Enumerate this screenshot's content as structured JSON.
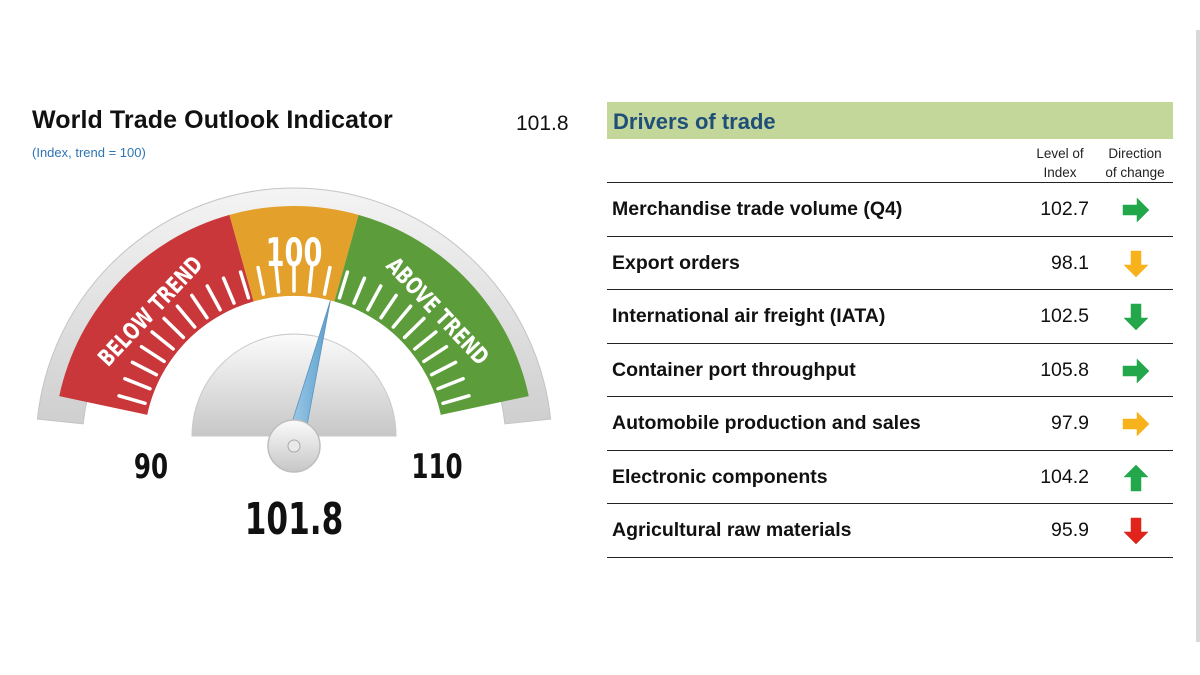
{
  "title": "World Trade Outlook Indicator",
  "subtitle": "(Index, trend = 100)",
  "value_display": "101.8",
  "gauge": {
    "min_label": "90",
    "mid_label": "100",
    "max_label": "110",
    "left_zone_label": "BELOW TREND",
    "right_zone_label": "ABOVE TREND",
    "value_label": "101.8",
    "colors": {
      "below": "#c9373a",
      "center": "#e3a02b",
      "above": "#5c9c3a"
    }
  },
  "drivers": {
    "header": "Drivers of trade",
    "col_level_line1": "Level of",
    "col_level_line2": "Index",
    "col_dir_line1": "Direction",
    "col_dir_line2": "of change",
    "rows": [
      {
        "label": "Merchandise trade volume (Q4)",
        "value": "102.7",
        "direction": "right",
        "color": "#22a84a"
      },
      {
        "label": "Export orders",
        "value": "98.1",
        "direction": "down",
        "color": "#f7b21c"
      },
      {
        "label": "International air freight (IATA)",
        "value": "102.5",
        "direction": "down",
        "color": "#22a84a"
      },
      {
        "label": "Container port throughput",
        "value": "105.8",
        "direction": "right",
        "color": "#22a84a"
      },
      {
        "label": "Automobile production and sales",
        "value": "97.9",
        "direction": "right",
        "color": "#f7b21c"
      },
      {
        "label": "Electronic components",
        "value": "104.2",
        "direction": "up",
        "color": "#22a84a"
      },
      {
        "label": "Agricultural raw materials",
        "value": "95.9",
        "direction": "down",
        "color": "#e0241c"
      }
    ]
  },
  "chart_data": {
    "type": "gauge",
    "title": "World Trade Outlook Indicator",
    "subtitle": "(Index, trend = 100)",
    "min": 90,
    "max": 110,
    "trend": 100,
    "value": 101.8,
    "zones": [
      {
        "label": "BELOW TREND",
        "from": 90,
        "to": 98
      },
      {
        "label": "",
        "from": 98,
        "to": 102
      },
      {
        "label": "ABOVE TREND",
        "from": 102,
        "to": 110
      }
    ],
    "tick_labels": [
      "90",
      "100",
      "110"
    ],
    "table": {
      "columns": [
        "Drivers of trade",
        "Level of Index",
        "Direction of change"
      ],
      "rows": [
        [
          "Merchandise trade volume (Q4)",
          102.7,
          "right"
        ],
        [
          "Export orders",
          98.1,
          "down"
        ],
        [
          "International air freight (IATA)",
          102.5,
          "down"
        ],
        [
          "Container port throughput",
          105.8,
          "right"
        ],
        [
          "Automobile production and sales",
          97.9,
          "right"
        ],
        [
          "Electronic components",
          104.2,
          "up"
        ],
        [
          "Agricultural raw materials",
          95.9,
          "down"
        ]
      ]
    }
  }
}
